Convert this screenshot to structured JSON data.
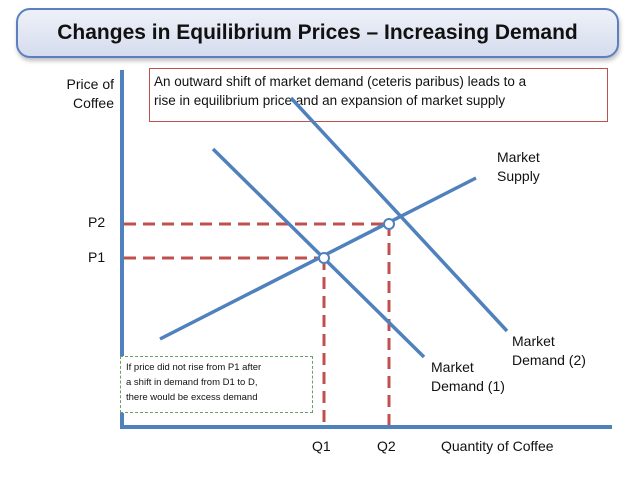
{
  "title": "Changes in Equilibrium Prices – Increasing Demand",
  "y_axis_label": [
    "Price of",
    "Coffee"
  ],
  "x_axis_label": "Quantity of Coffee",
  "note_top": [
    "An outward shift of market demand (ceteris paribus) leads to a",
    "rise in equilibrium price and an expansion of market supply"
  ],
  "note_bottom": [
    "If price did not rise from P1 after",
    "a shift in demand from D1 to D,",
    "there would be excess demand"
  ],
  "price_labels": {
    "p1": "P1",
    "p2": "P2"
  },
  "quantity_labels": {
    "q1": "Q1",
    "q2": "Q2"
  },
  "curves": {
    "supply": [
      "Market",
      "Supply"
    ],
    "demand1": [
      "Market",
      "Demand (1)"
    ],
    "demand2": [
      "Market",
      "Demand (2)"
    ]
  },
  "colors": {
    "curve": "#4f81bd",
    "guide": "#c0504d",
    "title_border": "#5b7fc0"
  }
}
